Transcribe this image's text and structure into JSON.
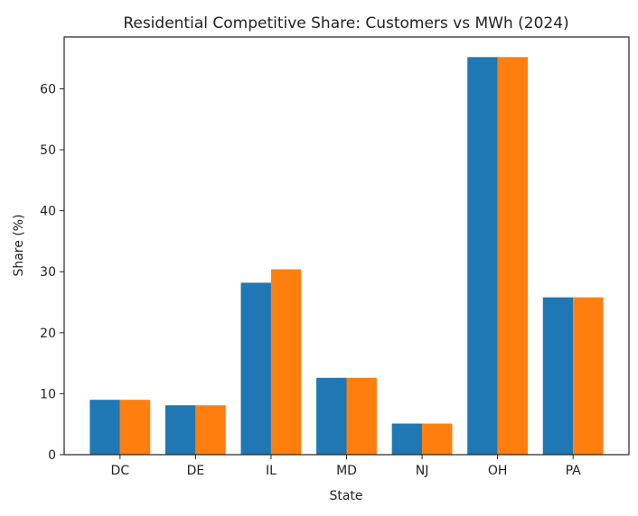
{
  "chart_data": {
    "type": "bar",
    "title": "Residential Competitive Share: Customers vs MWh (2024)",
    "xlabel": "State",
    "ylabel": "Share (%)",
    "categories": [
      "DC",
      "DE",
      "IL",
      "MD",
      "NJ",
      "OH",
      "PA"
    ],
    "series": [
      {
        "values": [
          9.0,
          8.1,
          28.2,
          12.6,
          5.1,
          65.2,
          25.8
        ],
        "color": "#1f77b4"
      },
      {
        "values": [
          9.0,
          8.1,
          30.4,
          12.6,
          5.1,
          65.2,
          25.8
        ],
        "color": "#ff7f0e"
      }
    ],
    "ylim": [
      0,
      68.5
    ],
    "yticks": [
      0,
      10,
      20,
      30,
      40,
      50,
      60
    ],
    "grid": false,
    "legend": "none"
  }
}
